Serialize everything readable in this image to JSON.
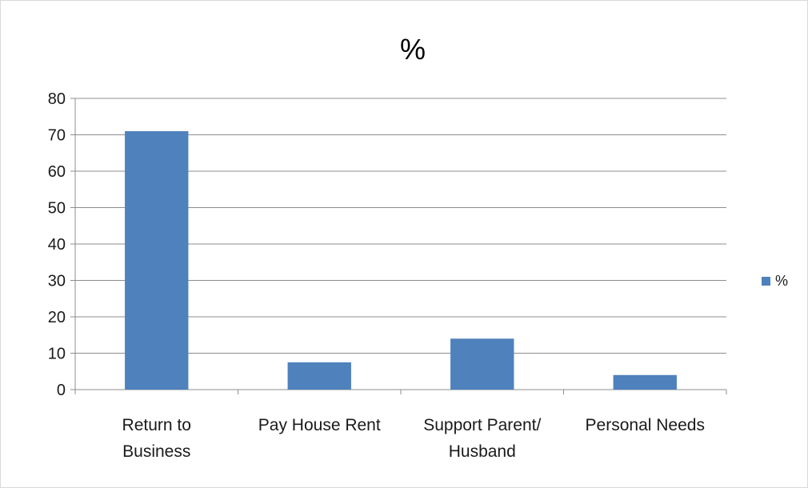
{
  "chart_data": {
    "type": "bar",
    "title": "%",
    "categories": [
      [
        "Return to",
        "Business"
      ],
      [
        "Pay House Rent"
      ],
      [
        "Support Parent/",
        "Husband"
      ],
      [
        "Personal Needs"
      ]
    ],
    "series": [
      {
        "name": "%",
        "values": [
          71,
          7.5,
          14,
          4
        ],
        "color": "#4f81bd"
      }
    ],
    "yticks": [
      "0",
      "10",
      "20",
      "30",
      "40",
      "50",
      "60",
      "70",
      "80"
    ],
    "ylim": [
      0,
      80
    ],
    "grid": true,
    "legend": "right",
    "xlabel": "",
    "ylabel": ""
  }
}
